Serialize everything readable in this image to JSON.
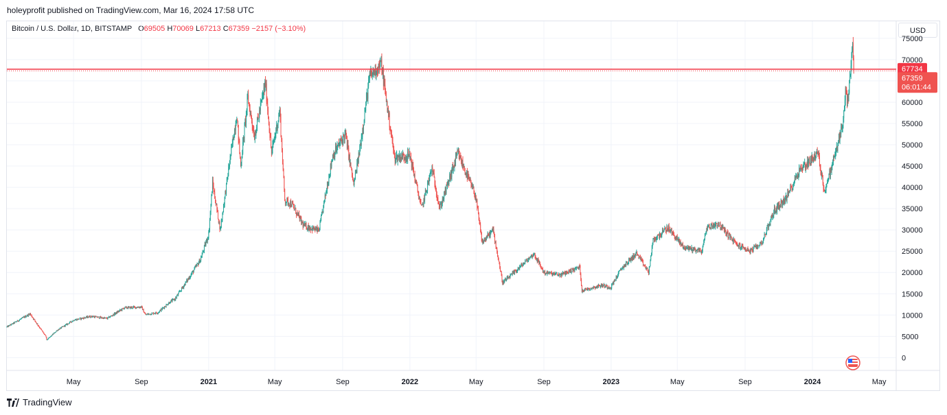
{
  "header": {
    "published": "holeyprofit published on TradingView.com, Mar 16, 2024 17:58 UTC"
  },
  "legend": {
    "symbol": "Bitcoin / U.S. Dollar, 1D, BITSTAMP",
    "o_label": "O",
    "o_value": "69505",
    "h_label": "H",
    "h_value": "70069",
    "l_label": "L",
    "l_value": "67213",
    "c_label": "C",
    "c_value": "67359",
    "change": "−2157 (−3.10%)"
  },
  "currency": "USD",
  "footer": {
    "brand": "TradingView"
  },
  "colors": {
    "up": "#26a69a",
    "down": "#ef5350",
    "hline": "#f23645",
    "axis_text": "#131722",
    "grid": "#f0f3fa"
  },
  "chart_data": {
    "type": "candlestick",
    "symbol": "Bitcoin / U.S. Dollar",
    "interval": "1D",
    "exchange": "BITSTAMP",
    "x_ticks": [
      "May",
      "Sep",
      "2021",
      "May",
      "Sep",
      "2022",
      "May",
      "Sep",
      "2023",
      "May",
      "Sep",
      "2024",
      "May"
    ],
    "x_tick_dates": [
      "2020-05-01",
      "2020-09-01",
      "2021-01-01",
      "2021-05-01",
      "2021-09-01",
      "2022-01-01",
      "2022-05-01",
      "2022-09-01",
      "2023-01-01",
      "2023-05-01",
      "2023-09-01",
      "2024-01-01",
      "2024-05-01"
    ],
    "y_ticks": [
      0,
      5000,
      10000,
      15000,
      20000,
      25000,
      30000,
      35000,
      40000,
      45000,
      50000,
      55000,
      60000,
      65000,
      70000,
      75000
    ],
    "y_range": [
      -3000,
      79000
    ],
    "x_range": [
      "2020-01-01",
      "2024-06-01"
    ],
    "horizontal_line": {
      "price": 67734,
      "label": "67734"
    },
    "last_price": {
      "value": 67359,
      "label": "67359",
      "countdown": "06:01:44"
    },
    "price_path": [
      [
        "2020-01-01",
        7200
      ],
      [
        "2020-02-12",
        10300
      ],
      [
        "2020-03-12",
        4900
      ],
      [
        "2020-03-13",
        4100
      ],
      [
        "2020-04-01",
        6400
      ],
      [
        "2020-05-01",
        8800
      ],
      [
        "2020-06-01",
        9700
      ],
      [
        "2020-07-01",
        9200
      ],
      [
        "2020-08-01",
        11700
      ],
      [
        "2020-09-01",
        11900
      ],
      [
        "2020-09-08",
        10100
      ],
      [
        "2020-10-01",
        10600
      ],
      [
        "2020-10-21",
        12900
      ],
      [
        "2020-11-01",
        13800
      ],
      [
        "2020-12-01",
        19700
      ],
      [
        "2020-12-17",
        23000
      ],
      [
        "2021-01-01",
        29000
      ],
      [
        "2021-01-08",
        41000
      ],
      [
        "2021-01-22",
        30000
      ],
      [
        "2021-02-08",
        46000
      ],
      [
        "2021-02-21",
        57000
      ],
      [
        "2021-02-28",
        45000
      ],
      [
        "2021-03-13",
        61000
      ],
      [
        "2021-03-25",
        52000
      ],
      [
        "2021-04-14",
        64500
      ],
      [
        "2021-04-25",
        48000
      ],
      [
        "2021-05-10",
        58000
      ],
      [
        "2021-05-19",
        37000
      ],
      [
        "2021-06-01",
        36000
      ],
      [
        "2021-06-22",
        31000
      ],
      [
        "2021-07-20",
        29800
      ],
      [
        "2021-08-14",
        47500
      ],
      [
        "2021-09-06",
        52500
      ],
      [
        "2021-09-21",
        40500
      ],
      [
        "2021-10-01",
        48000
      ],
      [
        "2021-10-20",
        66000
      ],
      [
        "2021-11-10",
        69000
      ],
      [
        "2021-12-04",
        47000
      ],
      [
        "2022-01-01",
        47500
      ],
      [
        "2022-01-22",
        35000
      ],
      [
        "2022-02-10",
        44500
      ],
      [
        "2022-02-24",
        35000
      ],
      [
        "2022-03-29",
        48000
      ],
      [
        "2022-04-30",
        38000
      ],
      [
        "2022-05-12",
        27000
      ],
      [
        "2022-06-01",
        30000
      ],
      [
        "2022-06-18",
        17600
      ],
      [
        "2022-07-01",
        19000
      ],
      [
        "2022-08-14",
        24400
      ],
      [
        "2022-09-01",
        20000
      ],
      [
        "2022-10-01",
        19400
      ],
      [
        "2022-11-05",
        21300
      ],
      [
        "2022-11-09",
        15800
      ],
      [
        "2022-12-15",
        17000
      ],
      [
        "2022-12-31",
        16500
      ],
      [
        "2023-01-20",
        21000
      ],
      [
        "2023-02-16",
        24500
      ],
      [
        "2023-03-10",
        20000
      ],
      [
        "2023-03-18",
        27500
      ],
      [
        "2023-04-14",
        30500
      ],
      [
        "2023-05-12",
        26000
      ],
      [
        "2023-06-15",
        25000
      ],
      [
        "2023-06-23",
        30500
      ],
      [
        "2023-07-14",
        31500
      ],
      [
        "2023-08-17",
        26500
      ],
      [
        "2023-09-11",
        25000
      ],
      [
        "2023-10-01",
        27000
      ],
      [
        "2023-10-24",
        34500
      ],
      [
        "2023-11-15",
        37500
      ],
      [
        "2023-12-08",
        44000
      ],
      [
        "2024-01-11",
        48000
      ],
      [
        "2024-01-23",
        39000
      ],
      [
        "2024-02-01",
        43000
      ],
      [
        "2024-02-20",
        52000
      ],
      [
        "2024-02-27",
        57000
      ],
      [
        "2024-03-01",
        62000
      ],
      [
        "2024-03-05",
        60000
      ],
      [
        "2024-03-14",
        73000
      ],
      [
        "2024-03-16",
        67359
      ]
    ]
  }
}
